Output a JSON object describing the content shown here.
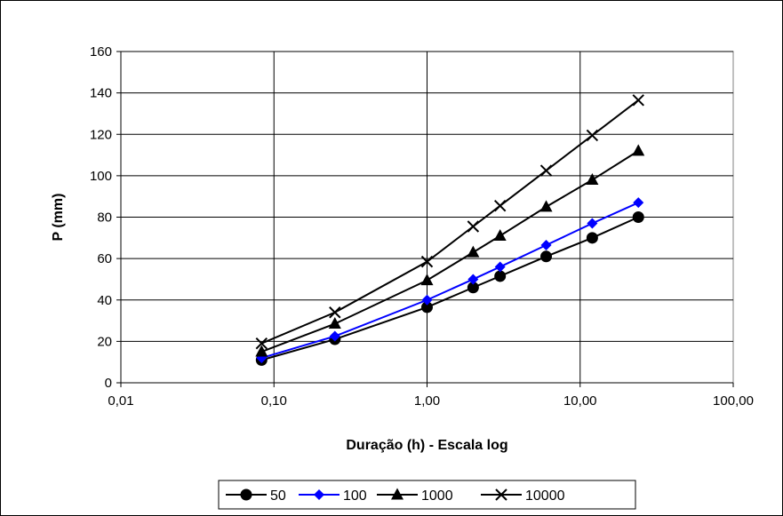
{
  "chart_data": {
    "type": "line",
    "title": "",
    "xlabel": "Duração (h) - Escala log",
    "ylabel": "P (mm)",
    "x_scale": "log",
    "xlim": [
      0.01,
      100
    ],
    "ylim": [
      0,
      160
    ],
    "x_ticks": [
      0.01,
      0.1,
      1,
      10,
      100
    ],
    "x_tick_labels": [
      "0,01",
      "0,10",
      "1,00",
      "10,00",
      "100,00"
    ],
    "y_ticks": [
      0,
      20,
      40,
      60,
      80,
      100,
      120,
      140,
      160
    ],
    "y_tick_labels": [
      "0",
      "20",
      "40",
      "60",
      "80",
      "100",
      "120",
      "140",
      "160"
    ],
    "grid": true,
    "legend_position": "bottom",
    "x": [
      0.083,
      0.25,
      1,
      2,
      3,
      6,
      12,
      24
    ],
    "series": [
      {
        "name": "50",
        "values": [
          11,
          21,
          36.5,
          46,
          51.5,
          61,
          70,
          80
        ],
        "color": "#000000",
        "marker": "circle"
      },
      {
        "name": "100",
        "values": [
          12,
          22.5,
          40,
          50,
          56,
          66.5,
          77,
          87
        ],
        "color": "#0000ff",
        "marker": "diamond"
      },
      {
        "name": "1000",
        "values": [
          15,
          28.5,
          49.5,
          63,
          71,
          85,
          98,
          112
        ],
        "color": "#000000",
        "marker": "triangle"
      },
      {
        "name": "10000",
        "values": [
          19,
          34,
          58.5,
          75.5,
          85.5,
          102.5,
          119.5,
          136.5
        ],
        "color": "#000000",
        "marker": "x"
      }
    ]
  }
}
